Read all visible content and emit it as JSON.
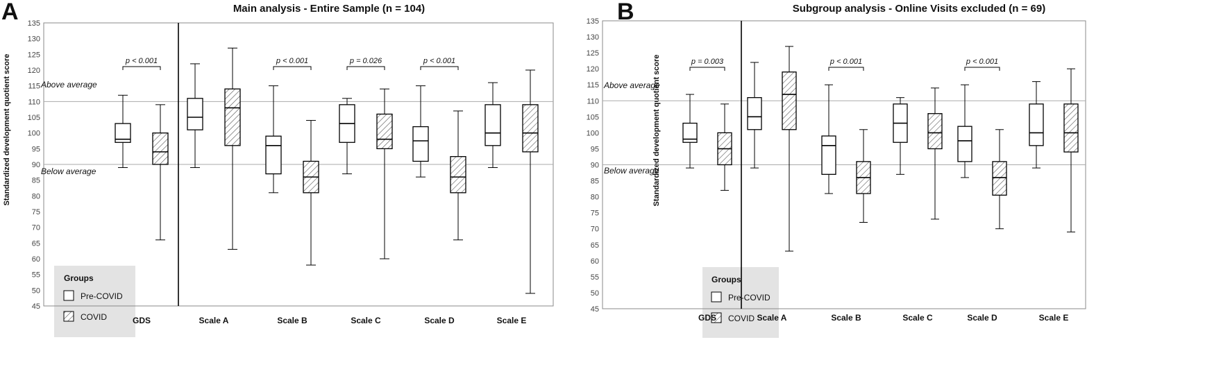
{
  "colors": {
    "box_fill": "#ffffff",
    "stroke": "#000000",
    "hatch": "#555555",
    "legend_bg": "#e3e3e3",
    "ref_line": "#aaaaaa"
  },
  "legend": {
    "title": "Groups",
    "items": [
      "Pre-COVID",
      "COVID"
    ]
  },
  "chart_data": [
    {
      "type": "boxplot",
      "panel": "A",
      "title": "Main analysis - Entire Sample (n = 104)",
      "ylabel": "Standardized development quotient score",
      "ylim": [
        45,
        135
      ],
      "yticks": [
        45,
        50,
        55,
        60,
        65,
        70,
        75,
        80,
        85,
        90,
        95,
        100,
        105,
        110,
        115,
        120,
        125,
        130,
        135
      ],
      "categories": [
        "GDS",
        "Scale A",
        "Scale B",
        "Scale C",
        "Scale D",
        "Scale E"
      ],
      "reference_lines": [
        {
          "y": 110,
          "label": "Above average"
        },
        {
          "y": 90,
          "label": "Below average"
        }
      ],
      "annotations": [
        {
          "category": "GDS",
          "text": "p < 0.001"
        },
        {
          "category": "Scale B",
          "text": "p < 0.001"
        },
        {
          "category": "Scale C",
          "text": "p = 0.026"
        },
        {
          "category": "Scale D",
          "text": "p < 0.001"
        }
      ],
      "series": [
        {
          "name": "Pre-COVID",
          "boxes": [
            {
              "min": 89,
              "q1": 97,
              "median": 98,
              "q3": 103,
              "max": 112
            },
            {
              "min": 89,
              "q1": 101,
              "median": 105,
              "q3": 111,
              "max": 122
            },
            {
              "min": 81,
              "q1": 87,
              "median": 96,
              "q3": 99,
              "max": 115
            },
            {
              "min": 87,
              "q1": 97,
              "median": 103,
              "q3": 109,
              "max": 111
            },
            {
              "min": 86,
              "q1": 91,
              "median": 97.5,
              "q3": 102,
              "max": 115
            },
            {
              "min": 89,
              "q1": 96,
              "median": 100,
              "q3": 109,
              "max": 116
            }
          ]
        },
        {
          "name": "COVID",
          "boxes": [
            {
              "min": 66,
              "q1": 90,
              "median": 94,
              "q3": 100,
              "max": 109
            },
            {
              "min": 63,
              "q1": 96,
              "median": 108,
              "q3": 114,
              "max": 127
            },
            {
              "min": 58,
              "q1": 81,
              "median": 86,
              "q3": 91,
              "max": 104
            },
            {
              "min": 60,
              "q1": 95,
              "median": 98,
              "q3": 106,
              "max": 114
            },
            {
              "min": 66,
              "q1": 81,
              "median": 86,
              "q3": 92.5,
              "max": 107
            },
            {
              "min": 49,
              "q1": 94,
              "median": 100,
              "q3": 109,
              "max": 120
            }
          ]
        }
      ]
    },
    {
      "type": "boxplot",
      "panel": "B",
      "title": "Subgroup analysis - Online Visits excluded (n = 69)",
      "ylabel": "Standardized development quotient score",
      "ylim": [
        45,
        135
      ],
      "yticks": [
        45,
        50,
        55,
        60,
        65,
        70,
        75,
        80,
        85,
        90,
        95,
        100,
        105,
        110,
        115,
        120,
        125,
        130,
        135
      ],
      "categories": [
        "GDS",
        "Scale A",
        "Scale B",
        "Scale C",
        "Scale D",
        "Scale E"
      ],
      "reference_lines": [
        {
          "y": 110,
          "label": "Above average"
        },
        {
          "y": 90,
          "label": "Below average"
        }
      ],
      "annotations": [
        {
          "category": "GDS",
          "text": "p = 0.003"
        },
        {
          "category": "Scale B",
          "text": "p < 0.001"
        },
        {
          "category": "Scale D",
          "text": "p < 0.001"
        }
      ],
      "series": [
        {
          "name": "Pre-COVID",
          "boxes": [
            {
              "min": 89,
              "q1": 97,
              "median": 98,
              "q3": 103,
              "max": 112
            },
            {
              "min": 89,
              "q1": 101,
              "median": 105,
              "q3": 111,
              "max": 122
            },
            {
              "min": 81,
              "q1": 87,
              "median": 96,
              "q3": 99,
              "max": 115
            },
            {
              "min": 87,
              "q1": 97,
              "median": 103,
              "q3": 109,
              "max": 111
            },
            {
              "min": 86,
              "q1": 91,
              "median": 97.5,
              "q3": 102,
              "max": 115
            },
            {
              "min": 89,
              "q1": 96,
              "median": 100,
              "q3": 109,
              "max": 116
            }
          ]
        },
        {
          "name": "COVID",
          "boxes": [
            {
              "min": 82,
              "q1": 90,
              "median": 95,
              "q3": 100,
              "max": 109
            },
            {
              "min": 63,
              "q1": 101,
              "median": 112,
              "q3": 119,
              "max": 127
            },
            {
              "min": 72,
              "q1": 81,
              "median": 86,
              "q3": 91,
              "max": 101
            },
            {
              "min": 73,
              "q1": 95,
              "median": 100,
              "q3": 106,
              "max": 114
            },
            {
              "min": 70,
              "q1": 80.5,
              "median": 86,
              "q3": 91,
              "max": 101
            },
            {
              "min": 69,
              "q1": 94,
              "median": 100,
              "q3": 109,
              "max": 120
            }
          ]
        }
      ]
    }
  ]
}
